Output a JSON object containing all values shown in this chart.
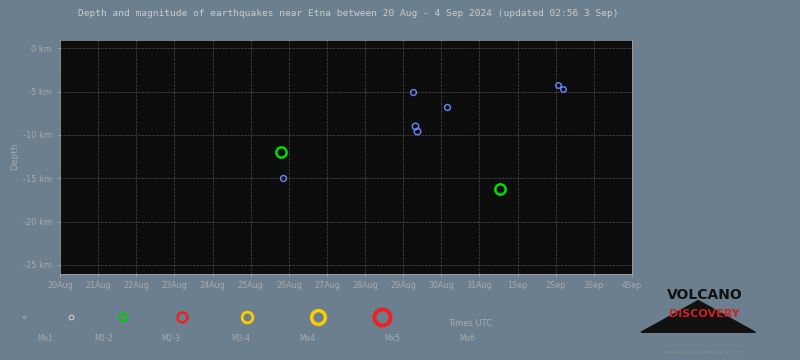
{
  "title": "Depth and magnitude of earthquakes near Etna between 20 Aug - 4 Sep 2024 (updated 02:56 3 Sep)",
  "outer_background": "#6b7f8e",
  "plot_area_color": "#0d0d0d",
  "title_color": "#cccccc",
  "axis_color": "#aaaaaa",
  "grid_color": "#555555",
  "ylabel": "Depth",
  "xlabel_dates": [
    "20Aug",
    "21Aug",
    "22Aug",
    "23Aug",
    "24Aug",
    "25Aug",
    "26Aug",
    "27Aug",
    "28Aug",
    "29Aug",
    "30Aug",
    "31Aug",
    "1Sep",
    "2Sep",
    "3Sep",
    "4Sep"
  ],
  "ytick_labels": [
    "0 km",
    "-5 km",
    "-10 km",
    "-15 km",
    "-20 km",
    "-25 km"
  ],
  "ytick_values": [
    0,
    -5,
    -10,
    -15,
    -20,
    -25
  ],
  "ylim": [
    -26,
    1
  ],
  "xlim_start": 0,
  "xlim_end": 15,
  "earthquakes": [
    {
      "date_idx": 5.8,
      "depth": -12.0,
      "color": "#00dd00",
      "marker_size": 55,
      "linewidth": 1.8
    },
    {
      "date_idx": 5.85,
      "depth": -15.0,
      "color": "#6688ff",
      "marker_size": 18,
      "linewidth": 1.0
    },
    {
      "date_idx": 9.25,
      "depth": -5.0,
      "color": "#6688ff",
      "marker_size": 18,
      "linewidth": 1.0
    },
    {
      "date_idx": 9.3,
      "depth": -9.0,
      "color": "#6688ff",
      "marker_size": 22,
      "linewidth": 1.0
    },
    {
      "date_idx": 9.35,
      "depth": -9.5,
      "color": "#6688ff",
      "marker_size": 22,
      "linewidth": 1.0
    },
    {
      "date_idx": 10.15,
      "depth": -6.8,
      "color": "#6688ff",
      "marker_size": 18,
      "linewidth": 1.0
    },
    {
      "date_idx": 11.55,
      "depth": -16.2,
      "color": "#00dd00",
      "marker_size": 55,
      "linewidth": 1.8
    },
    {
      "date_idx": 13.05,
      "depth": -4.2,
      "color": "#6688ff",
      "marker_size": 16,
      "linewidth": 1.0
    },
    {
      "date_idx": 13.2,
      "depth": -4.7,
      "color": "#6688ff",
      "marker_size": 16,
      "linewidth": 1.0
    }
  ],
  "legend_items": [
    {
      "label": "Mx1",
      "color": "#aaaaaa",
      "ms": 3,
      "lw": 0.6
    },
    {
      "label": "M1-2",
      "color": "#cccccc",
      "ms": 6,
      "lw": 0.8
    },
    {
      "label": "M2-3",
      "color": "#00cc00",
      "ms": 10,
      "lw": 1.4
    },
    {
      "label": "M3-4",
      "color": "#ee2222",
      "ms": 13,
      "lw": 1.8
    },
    {
      "label": "Mx4",
      "color": "#ffcc00",
      "ms": 14,
      "lw": 2.0
    },
    {
      "label": "Mx5",
      "color": "#ffcc00",
      "ms": 18,
      "lw": 2.5
    },
    {
      "label": "Mx6",
      "color": "#ee2222",
      "ms": 21,
      "lw": 2.8
    }
  ]
}
